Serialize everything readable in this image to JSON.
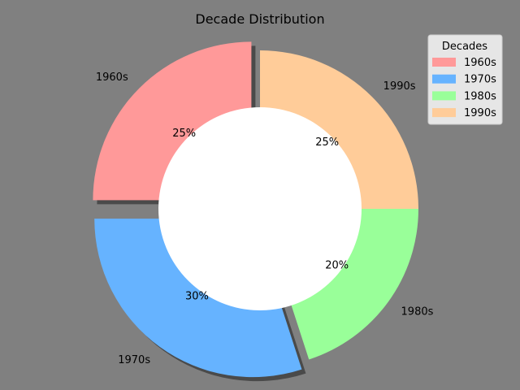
{
  "chart_data": {
    "type": "pie",
    "title": "Decade Distribution",
    "categories": [
      "1960s",
      "1970s",
      "1980s",
      "1990s"
    ],
    "values": [
      25,
      30,
      20,
      25
    ],
    "percent_labels": [
      "25%",
      "30%",
      "20%",
      "25%"
    ],
    "colors": [
      "#ff9999",
      "#66b3ff",
      "#99ff99",
      "#ffcc99"
    ],
    "exploded": [
      true,
      true,
      false,
      false
    ],
    "donut": true,
    "shadow": true,
    "legend": {
      "title": "Decades",
      "placement": "upper-right",
      "entries": [
        "1960s",
        "1970s",
        "1980s",
        "1990s"
      ]
    }
  },
  "style": {
    "background": "#808080",
    "hole_color": "#ffffff",
    "shadow_color": "#4a4a4a"
  }
}
